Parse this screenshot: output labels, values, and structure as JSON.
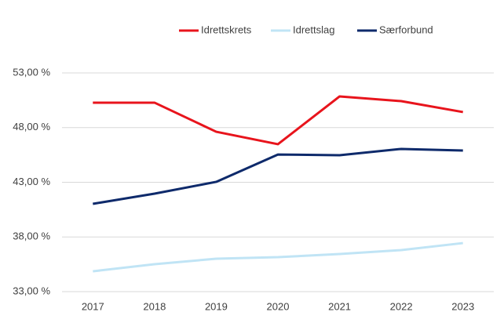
{
  "chart_data": {
    "type": "line",
    "categories": [
      "2017",
      "2018",
      "2019",
      "2020",
      "2021",
      "2022",
      "2023"
    ],
    "series": [
      {
        "name": "Idrettskrets",
        "color": "#e8141c",
        "values": [
          50.28,
          50.28,
          47.62,
          46.48,
          50.85,
          50.42,
          49.42
        ]
      },
      {
        "name": "Idrettslag",
        "color": "#c0e4f5",
        "values": [
          34.86,
          35.51,
          36.01,
          36.15,
          36.44,
          36.8,
          37.44
        ]
      },
      {
        "name": "Særforbund",
        "color": "#0e2a6b",
        "values": [
          41.03,
          41.96,
          43.04,
          45.54,
          45.47,
          46.05,
          45.9
        ]
      }
    ],
    "ylim": [
      33,
      53
    ],
    "yticks": [
      {
        "value": 33,
        "label": "33,00 %"
      },
      {
        "value": 38,
        "label": "38,00 %"
      },
      {
        "value": 43,
        "label": "43,00 %"
      },
      {
        "value": 48,
        "label": "48,00 %"
      },
      {
        "value": 53,
        "label": "53,00 %"
      }
    ],
    "grid": true,
    "legend": "top"
  }
}
